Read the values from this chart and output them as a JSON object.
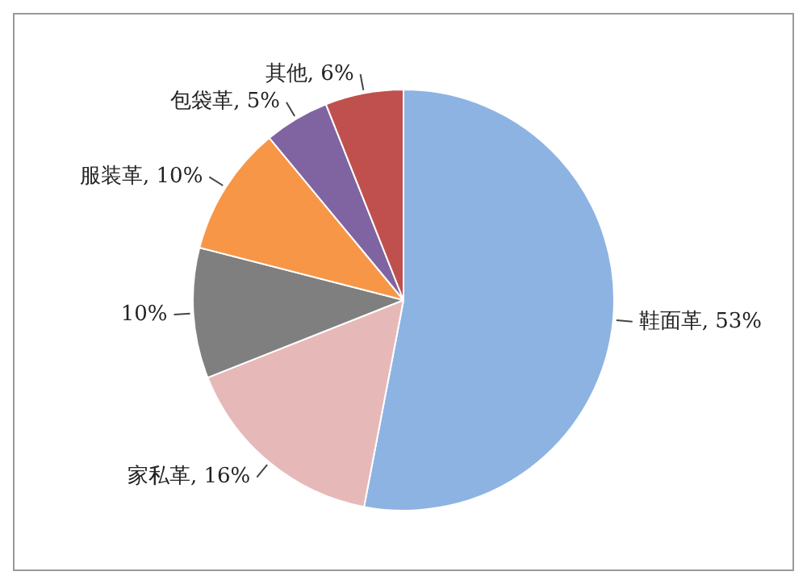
{
  "chart_data": {
    "type": "pie",
    "categories": [
      "鞋面革",
      "家私革",
      null,
      "服装革",
      "包袋革",
      "其他"
    ],
    "values": [
      53,
      16,
      10,
      10,
      5,
      6
    ],
    "colors": [
      "#8db3e2",
      "#e6b9b8",
      "#7f7f7f",
      "#f79646",
      "#8064a2",
      "#c0504d"
    ],
    "value_labels": [
      "53%",
      "16%",
      "10%",
      "10%",
      "5%",
      "6%"
    ],
    "legend": false
  }
}
